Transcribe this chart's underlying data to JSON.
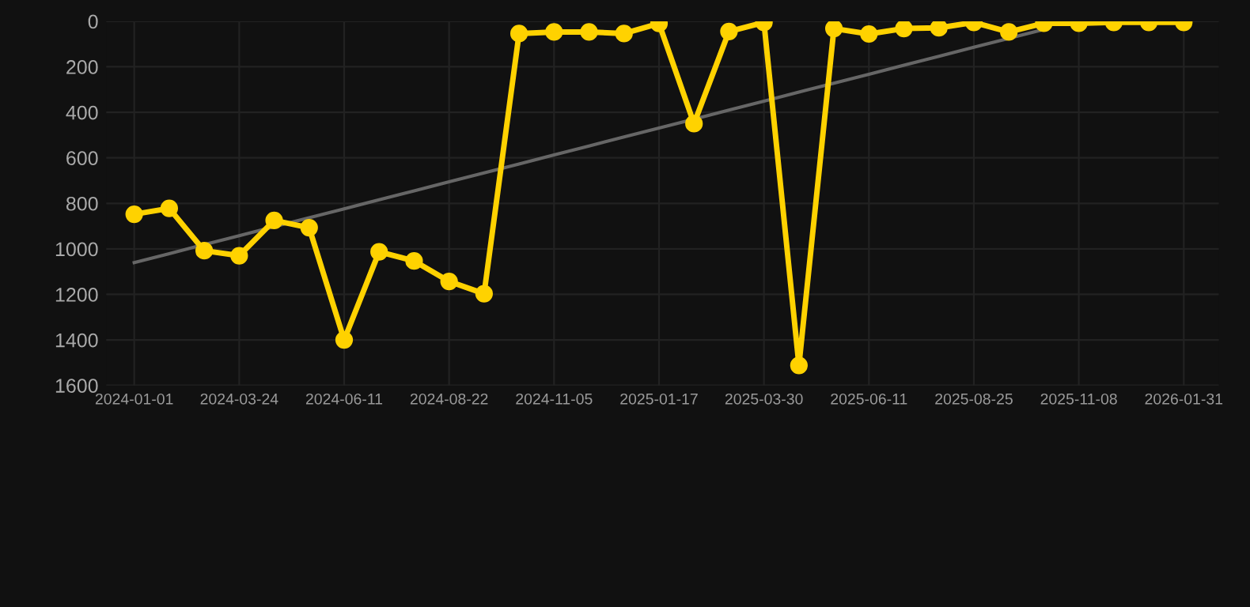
{
  "chart_data": {
    "type": "line",
    "categories": [
      "2024-01-01",
      null,
      null,
      "2024-03-24",
      null,
      null,
      "2024-06-11",
      null,
      null,
      "2024-08-22",
      null,
      null,
      "2024-11-05",
      null,
      null,
      "2025-01-17",
      null,
      null,
      "2025-03-30",
      null,
      null,
      "2025-06-11",
      null,
      null,
      "2025-08-25",
      null,
      null,
      "2025-11-08",
      null,
      null,
      "2026-01-31"
    ],
    "series": [
      {
        "color": "#ffd200",
        "marker": "circle",
        "values": [
          848,
          822,
          1008,
          1030,
          875,
          907,
          1400,
          1013,
          1053,
          1143,
          1197,
          54,
          47,
          47,
          54,
          10,
          450,
          45,
          5,
          1512,
          32,
          56,
          32,
          29,
          5,
          47,
          9,
          9,
          5,
          5,
          5
        ]
      },
      {
        "color": "#666666",
        "marker": "none",
        "values": [
          1060,
          1021,
          981,
          942,
          902,
          863,
          824,
          784,
          745,
          705,
          666,
          627,
          587,
          548,
          508,
          469,
          430,
          390,
          351,
          311,
          272,
          233,
          193,
          154,
          114,
          75,
          36,
          null,
          null,
          null,
          null
        ]
      }
    ],
    "ylim": [
      1600,
      0
    ],
    "yticks": [
      0,
      200,
      400,
      600,
      800,
      1000,
      1200,
      1400,
      1600
    ],
    "grid": true
  }
}
